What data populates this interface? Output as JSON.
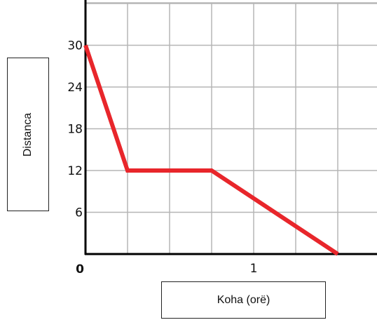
{
  "chart_data": {
    "type": "line",
    "xlabel": "Koha (orë)",
    "ylabel": "Distanca",
    "origin_label": "0",
    "x_tick_labels": [
      {
        "value": 1,
        "label": "1"
      }
    ],
    "y_tick_labels": [
      {
        "value": 6,
        "label": "6"
      },
      {
        "value": 12,
        "label": "12"
      },
      {
        "value": 18,
        "label": "18"
      },
      {
        "value": 24,
        "label": "24"
      },
      {
        "value": 30,
        "label": "30"
      }
    ],
    "xlim": [
      0,
      1.75
    ],
    "ylim": [
      0,
      36
    ],
    "grid": true,
    "grid_step_x": 0.25,
    "grid_step_y": 6,
    "series": [
      {
        "color": "#e8262b",
        "points": [
          [
            0,
            30
          ],
          [
            0.25,
            12
          ],
          [
            0.75,
            12
          ],
          [
            1.5,
            0
          ]
        ]
      }
    ]
  }
}
